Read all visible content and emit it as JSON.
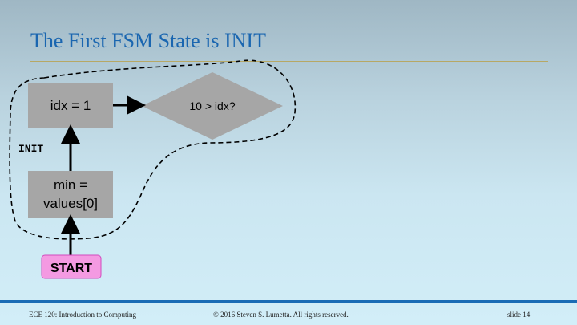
{
  "slide": {
    "title": "The First FSM State is INIT"
  },
  "diagram": {
    "nodes": {
      "idx_assign": "idx = 1",
      "condition": "10 > idx?",
      "min_assign_line1": "min =",
      "min_assign_line2": "values[0]",
      "start": "START"
    },
    "state_label": "INIT",
    "colors": {
      "box_fill": "#a6a6a6",
      "start_fill": "#f49ae2",
      "start_border": "#d24bbd",
      "title": "#1a66b0",
      "footer_bar": "#1a6cb5"
    }
  },
  "footer": {
    "course": "ECE 120: Introduction to Computing",
    "copyright": "© 2016 Steven S. Lumetta.  All rights reserved.",
    "slide_number": "slide 14"
  }
}
